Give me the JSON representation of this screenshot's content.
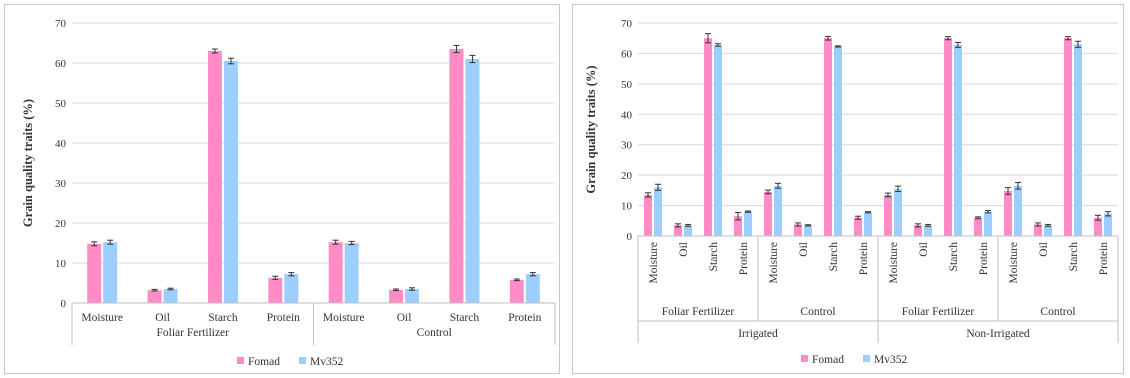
{
  "colors": {
    "fomad": "#ff8cc6",
    "mv352": "#9ccfff",
    "grid": "#d9d9d9",
    "axis": "#bfbfbf",
    "error": "#333333"
  },
  "chart_data": [
    {
      "type": "bar",
      "ylabel": "Grain quality traits (%)",
      "ylim": [
        0,
        70
      ],
      "yticks": [
        0,
        10,
        20,
        30,
        40,
        50,
        60,
        70
      ],
      "grid": true,
      "legend": "bottom",
      "categories": [
        "Moisture",
        "Oil",
        "Starch",
        "Protein",
        "Moisture",
        "Oil",
        "Starch",
        "Protein"
      ],
      "groups": [
        {
          "label": "Foliar Fertilizer",
          "span": 4
        },
        {
          "label": "Control",
          "span": 4
        }
      ],
      "series": [
        {
          "name": "Fomad",
          "values": [
            14.8,
            3.2,
            63.0,
            6.3,
            15.2,
            3.3,
            63.5,
            5.8
          ],
          "errors": [
            0.5,
            0.2,
            0.5,
            0.4,
            0.5,
            0.2,
            0.9,
            0.2
          ]
        },
        {
          "name": "Mv352",
          "values": [
            15.2,
            3.5,
            60.5,
            7.2,
            15.0,
            3.5,
            61.0,
            7.2
          ],
          "errors": [
            0.5,
            0.2,
            0.7,
            0.4,
            0.4,
            0.3,
            0.9,
            0.4
          ]
        }
      ]
    },
    {
      "type": "bar",
      "ylabel": "Grain quality traits (%)",
      "ylim": [
        0,
        70
      ],
      "yticks": [
        0,
        10,
        20,
        30,
        40,
        50,
        60,
        70
      ],
      "grid": true,
      "legend": "bottom",
      "categories": [
        "Moisture",
        "Oil",
        "Starch",
        "Protein",
        "Moisture",
        "Oil",
        "Starch",
        "Protein",
        "Moisture",
        "Oil",
        "Starch",
        "Protein",
        "Moisture",
        "Oil",
        "Starch",
        "Protein"
      ],
      "groups": [
        {
          "label": "Foliar Fertilizer",
          "span": 4
        },
        {
          "label": "Control",
          "span": 4
        },
        {
          "label": "Foliar Fertilizer",
          "span": 4
        },
        {
          "label": "Control",
          "span": 4
        }
      ],
      "supergroups": [
        {
          "label": "Irrigated",
          "span": 8
        },
        {
          "label": "Non-Irrigated",
          "span": 8
        }
      ],
      "series": [
        {
          "name": "Fomad",
          "values": [
            13.5,
            3.5,
            65.0,
            6.5,
            14.5,
            3.8,
            65.0,
            6.0,
            13.5,
            3.5,
            65.0,
            6.0,
            14.8,
            3.8,
            65.0,
            6.0
          ],
          "errors": [
            0.7,
            0.5,
            1.5,
            1.2,
            0.6,
            0.5,
            0.6,
            0.5,
            0.6,
            0.5,
            0.5,
            0.3,
            1.1,
            0.5,
            0.5,
            0.8
          ]
        },
        {
          "name": "Mv352",
          "values": [
            16.0,
            3.5,
            62.8,
            8.0,
            16.5,
            3.5,
            62.3,
            7.8,
            15.5,
            3.5,
            62.8,
            8.0,
            16.5,
            3.5,
            63.0,
            7.3
          ],
          "errors": [
            1.0,
            0.3,
            0.4,
            0.2,
            0.8,
            0.2,
            0.2,
            0.2,
            0.9,
            0.3,
            0.8,
            0.4,
            1.1,
            0.3,
            1.0,
            0.7
          ]
        }
      ]
    }
  ]
}
